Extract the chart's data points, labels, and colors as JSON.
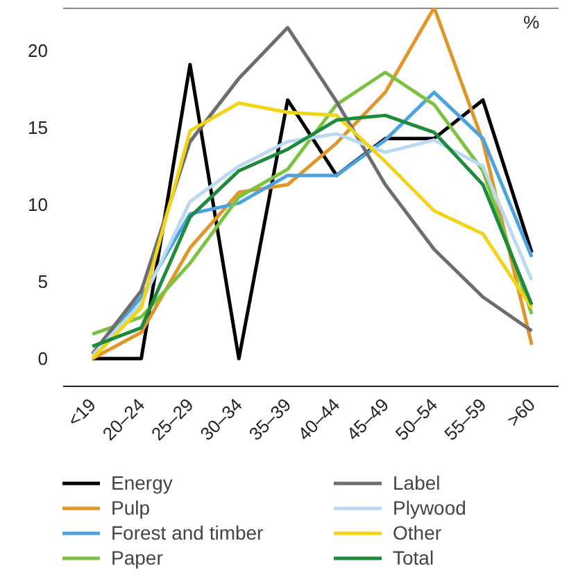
{
  "chart_data": {
    "type": "line",
    "categories": [
      "<19",
      "20–24",
      "25–29",
      "30–34",
      "35–39",
      "40–44",
      "45–49",
      "50–54",
      "55–59",
      ">60"
    ],
    "ylim": [
      -1.8,
      22.8
    ],
    "yticks": [
      0,
      5,
      10,
      15,
      20
    ],
    "grid": false,
    "legend": "bottom",
    "line_style": "solid",
    "marker": "none",
    "annotations": [
      "%"
    ],
    "series": [
      {
        "name": "Energy",
        "color": "#000000",
        "values": [
          0,
          0,
          19.1,
          0,
          16.8,
          11.9,
          14.3,
          14.3,
          16.8,
          6.9
        ]
      },
      {
        "name": "Pulp",
        "color": "#e0962a",
        "values": [
          0,
          1.7,
          7.2,
          10.8,
          11.3,
          14.0,
          17.3,
          22.8,
          14.1,
          0.9
        ]
      },
      {
        "name": "Forest and timber",
        "color": "#4aa3e0",
        "values": [
          0.3,
          4.0,
          9.4,
          10.1,
          11.9,
          11.9,
          14.2,
          17.3,
          14.3,
          6.6
        ]
      },
      {
        "name": "Paper",
        "color": "#7cc242",
        "values": [
          1.6,
          2.7,
          6.2,
          10.5,
          12.3,
          16.5,
          18.6,
          16.5,
          12.2,
          2.9
        ]
      },
      {
        "name": "Label",
        "color": "#6d6d6d",
        "values": [
          0.3,
          4.4,
          14.1,
          18.2,
          21.5,
          16.7,
          11.3,
          7.1,
          4.0,
          1.8
        ]
      },
      {
        "name": "Plywood",
        "color": "#bcd9f2",
        "values": [
          0.2,
          3.6,
          10.2,
          12.5,
          14.1,
          14.6,
          13.4,
          14.2,
          12.5,
          5.1
        ]
      },
      {
        "name": "Other",
        "color": "#f2d417",
        "values": [
          0,
          3.3,
          14.8,
          16.6,
          16.0,
          15.8,
          12.8,
          9.6,
          8.1,
          3.3
        ]
      },
      {
        "name": "Total",
        "color": "#1e8a3c",
        "values": [
          0.8,
          2.0,
          9.2,
          12.2,
          13.6,
          15.5,
          15.8,
          14.7,
          11.3,
          3.5
        ]
      }
    ]
  }
}
